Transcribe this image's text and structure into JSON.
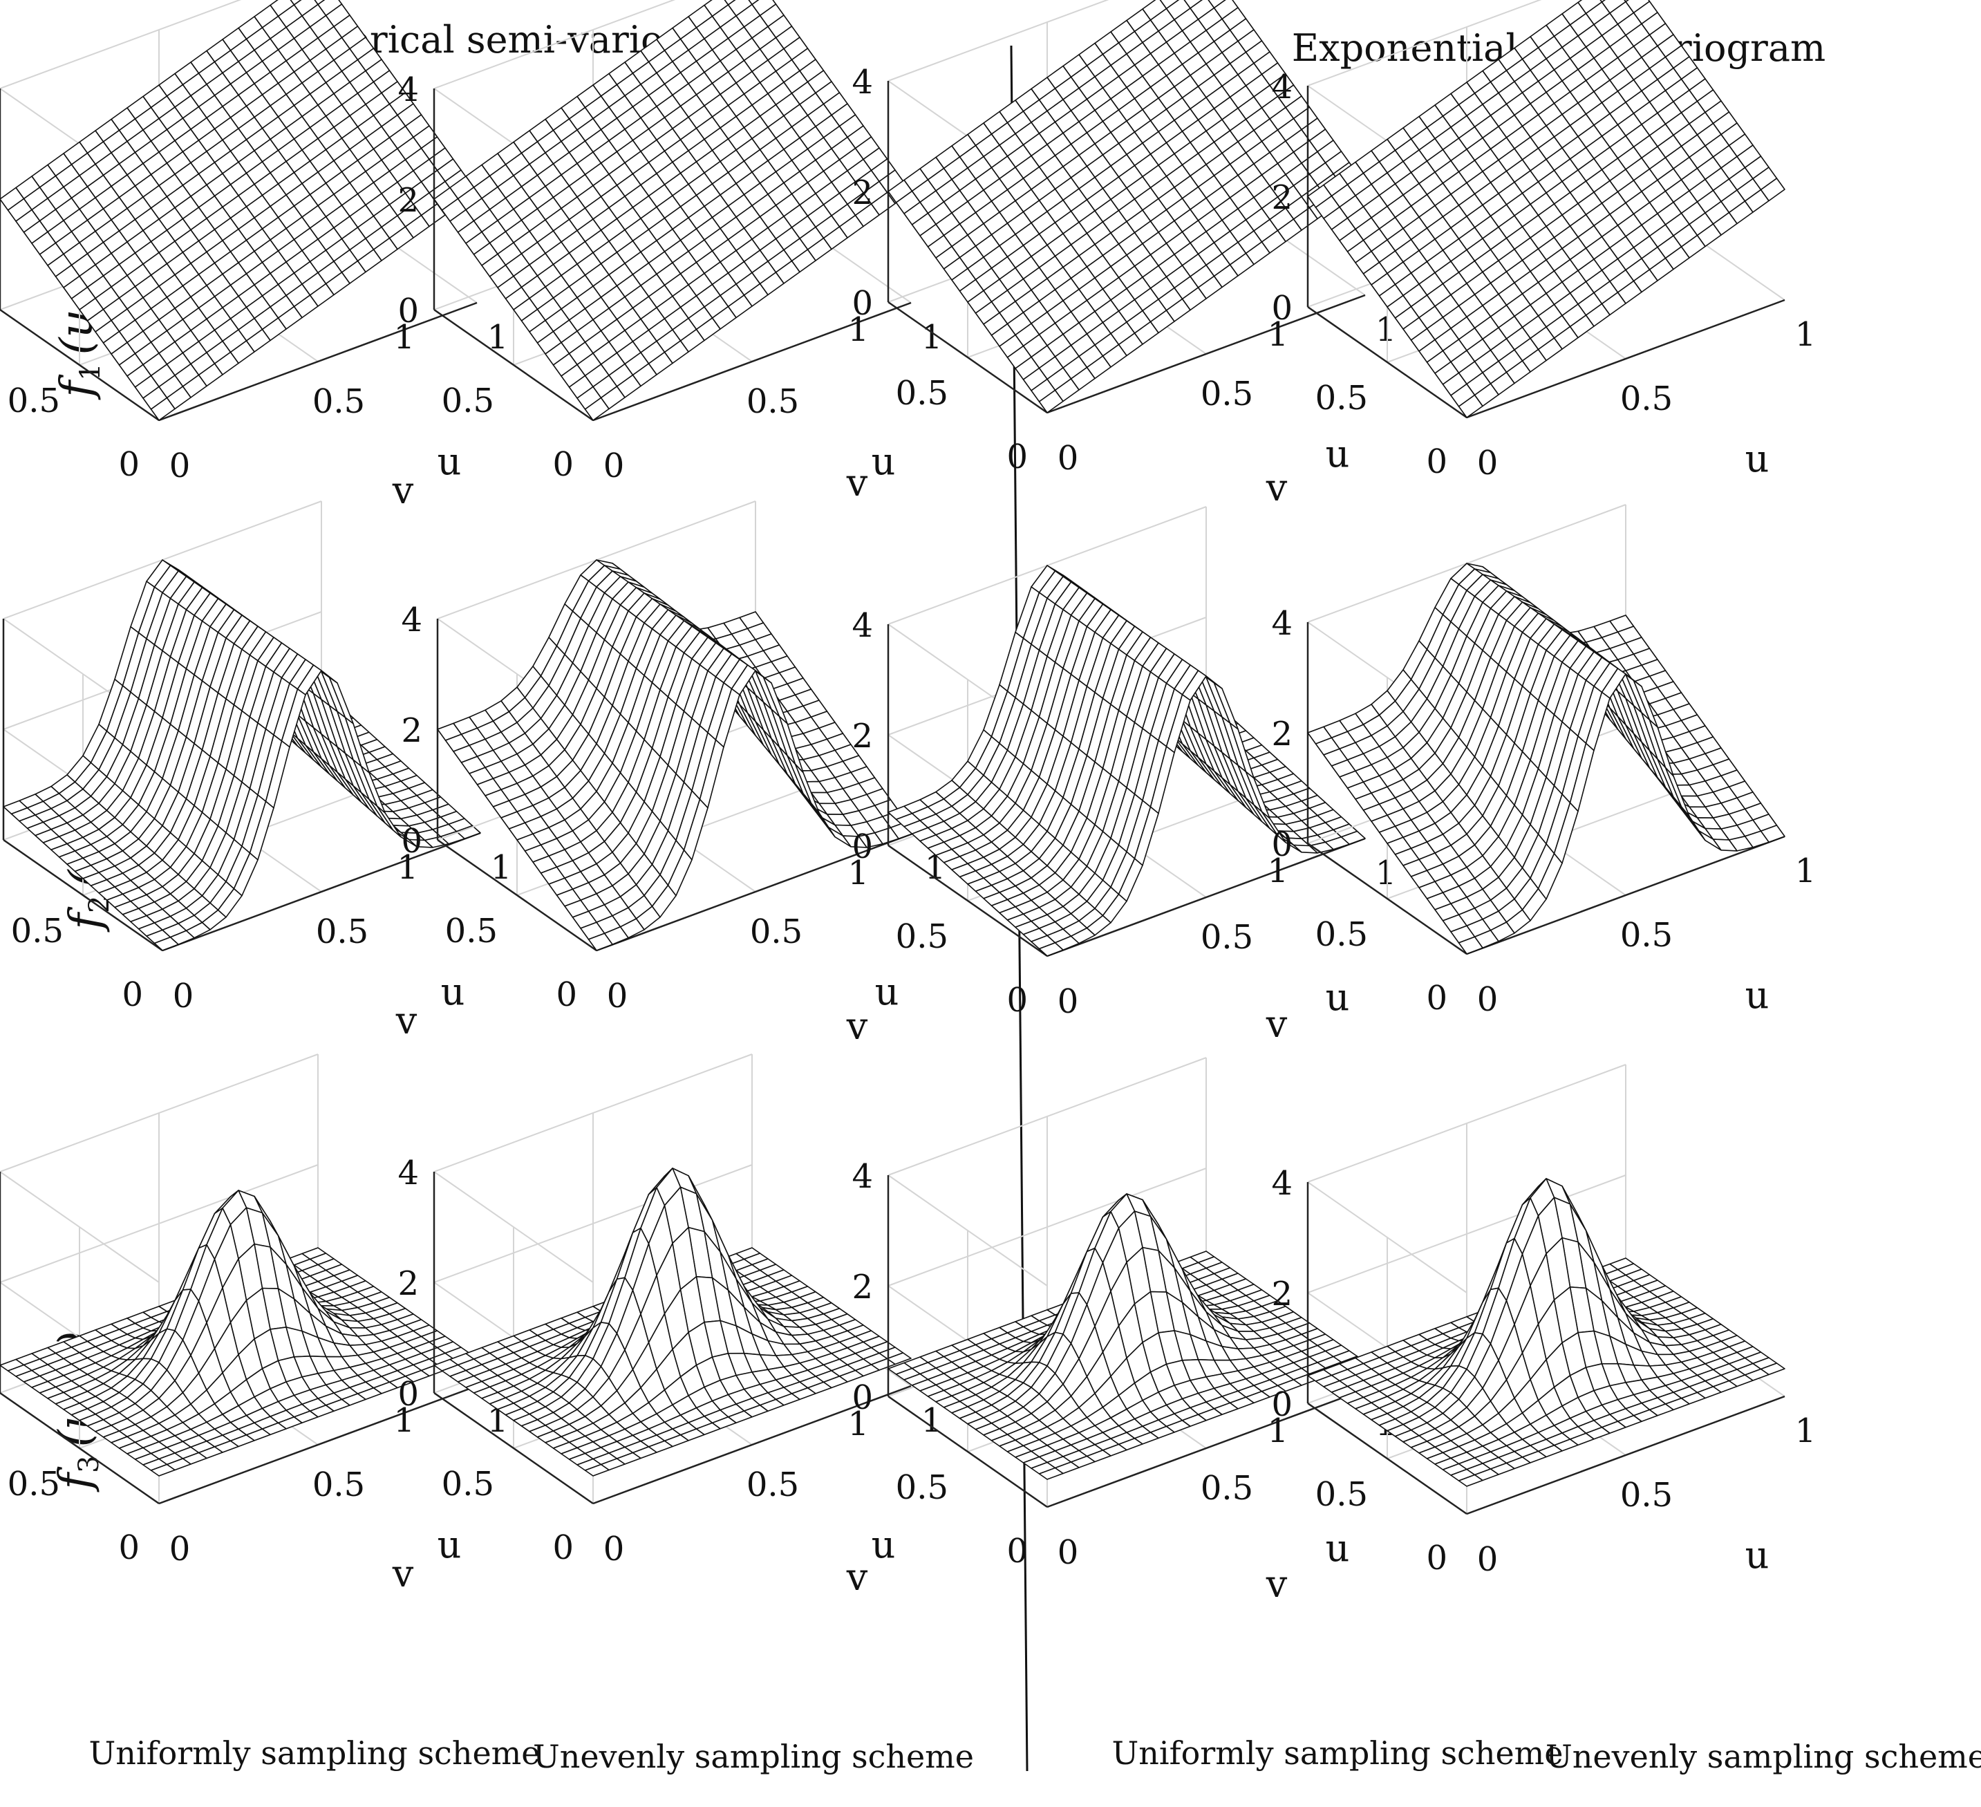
{
  "figure": {
    "column_titles": [
      "Spherical semi-variogram",
      "Exponential semi-variogram"
    ],
    "scheme_labels": [
      "Uniformly sampling scheme",
      "Unevenly sampling scheme",
      "Uniformly sampling scheme",
      "Unevenly sampling scheme"
    ],
    "row_zlabels": [
      {
        "pre": "f",
        "sub": "1",
        "post": "(u, v)"
      },
      {
        "pre": "f",
        "sub": "2",
        "post": "(u, v)"
      },
      {
        "pre": "f",
        "sub": "3",
        "post": "(u, v)"
      }
    ]
  },
  "chart_data": [
    {
      "type": "surface",
      "row": 0,
      "col": 0,
      "function": "plane",
      "variogram": "Spherical semi-variogram",
      "scheme": "Uniformly sampling scheme",
      "xlabel": "u",
      "ylabel": "v",
      "zlabel": "f1(u, v)",
      "xlim": [
        0,
        1
      ],
      "ylim": [
        0,
        1
      ],
      "zlim": [
        0,
        4
      ],
      "xticks": [
        "0",
        "0.5",
        "1"
      ],
      "yticks": [
        "0",
        "0.5",
        "1"
      ],
      "zticks": [
        "0",
        "2",
        "4"
      ],
      "grid": true,
      "mesh": "wireframe 20x20",
      "corner_values": {
        "u0v0": 0,
        "u1v0": 2,
        "u0v1": 2,
        "u1v1": 4
      }
    },
    {
      "type": "surface",
      "row": 0,
      "col": 1,
      "function": "plane",
      "variogram": "Spherical semi-variogram",
      "scheme": "Unevenly sampling scheme",
      "xlabel": "u",
      "ylabel": "v",
      "zlabel": "f1(u, v)",
      "xlim": [
        0,
        1
      ],
      "ylim": [
        0,
        1
      ],
      "zlim": [
        0,
        4
      ],
      "xticks": [
        "0",
        "0.5",
        "1"
      ],
      "yticks": [
        "0",
        "0.5",
        "1"
      ],
      "zticks": [
        "0",
        "2",
        "4"
      ],
      "grid": true,
      "mesh": "wireframe 20x20",
      "corner_values": {
        "u0v0": 0,
        "u1v0": 2,
        "u0v1": 2,
        "u1v1": 4
      }
    },
    {
      "type": "surface",
      "row": 0,
      "col": 2,
      "function": "plane",
      "variogram": "Exponential semi-variogram",
      "scheme": "Uniformly sampling scheme",
      "xlabel": "u",
      "ylabel": "v",
      "zlabel": "f1(u, v)",
      "xlim": [
        0,
        1
      ],
      "ylim": [
        0,
        1
      ],
      "zlim": [
        0,
        4
      ],
      "xticks": [
        "0",
        "0.5",
        "1"
      ],
      "yticks": [
        "0",
        "0.5",
        "1"
      ],
      "zticks": [
        "0",
        "2",
        "4"
      ],
      "grid": true,
      "mesh": "wireframe 20x20",
      "corner_values": {
        "u0v0": 0,
        "u1v0": 2,
        "u0v1": 2,
        "u1v1": 4
      }
    },
    {
      "type": "surface",
      "row": 0,
      "col": 3,
      "function": "plane",
      "variogram": "Exponential semi-variogram",
      "scheme": "Unevenly sampling scheme",
      "xlabel": "u",
      "ylabel": "v",
      "zlabel": "f1(u, v)",
      "xlim": [
        0,
        1
      ],
      "ylim": [
        0,
        1
      ],
      "zlim": [
        0,
        4
      ],
      "xticks": [
        "0",
        "0.5",
        "1"
      ],
      "yticks": [
        "0",
        "0.5",
        "1"
      ],
      "zticks": [
        "0",
        "2",
        "4"
      ],
      "grid": true,
      "mesh": "wireframe 20x20",
      "corner_values": {
        "u0v0": 0,
        "u1v0": 2,
        "u0v1": 2,
        "u1v1": 4
      }
    },
    {
      "type": "surface",
      "row": 1,
      "col": 0,
      "function": "ridge",
      "variogram": "Spherical semi-variogram",
      "scheme": "Uniformly sampling scheme",
      "xlabel": "u",
      "ylabel": "v",
      "zlabel": "f2(u, v)",
      "xlim": [
        0,
        1
      ],
      "ylim": [
        0,
        1
      ],
      "zlim": [
        0,
        4
      ],
      "xticks": [
        "0",
        "0.5",
        "1"
      ],
      "yticks": [
        "0",
        "0.5",
        "1"
      ],
      "zticks": [
        "0",
        "2",
        "4"
      ],
      "grid": true,
      "mesh": "wireframe 20x20",
      "peak_value": 4,
      "peak_along": "u = 0.5",
      "edge_value_v1": 0.6
    },
    {
      "type": "surface",
      "row": 1,
      "col": 1,
      "function": "ridge",
      "variogram": "Spherical semi-variogram",
      "scheme": "Unevenly sampling scheme",
      "xlabel": "u",
      "ylabel": "v",
      "zlabel": "f2(u, v)",
      "xlim": [
        0,
        1
      ],
      "ylim": [
        0,
        1
      ],
      "zlim": [
        0,
        4
      ],
      "xticks": [
        "0",
        "0.5",
        "1"
      ],
      "yticks": [
        "0",
        "0.5",
        "1"
      ],
      "zticks": [
        "0",
        "2",
        "4"
      ],
      "grid": true,
      "mesh": "wireframe 20x20",
      "peak_value": 4,
      "peak_along": "u = 0.5",
      "edge_value_v1": 2
    },
    {
      "type": "surface",
      "row": 1,
      "col": 2,
      "function": "ridge",
      "variogram": "Exponential semi-variogram",
      "scheme": "Uniformly sampling scheme",
      "xlabel": "u",
      "ylabel": "v",
      "zlabel": "f2(u, v)",
      "xlim": [
        0,
        1
      ],
      "ylim": [
        0,
        1
      ],
      "zlim": [
        0,
        4
      ],
      "xticks": [
        "0",
        "0.5",
        "1"
      ],
      "yticks": [
        "0",
        "0.5",
        "1"
      ],
      "zticks": [
        "0",
        "2",
        "4"
      ],
      "grid": true,
      "mesh": "wireframe 20x20",
      "peak_value": 4,
      "peak_along": "u = 0.5",
      "edge_value_v1": 0.6
    },
    {
      "type": "surface",
      "row": 1,
      "col": 3,
      "function": "ridge",
      "variogram": "Exponential semi-variogram",
      "scheme": "Unevenly sampling scheme",
      "xlabel": "u",
      "ylabel": "v",
      "zlabel": "f2(u, v)",
      "xlim": [
        0,
        1
      ],
      "ylim": [
        0,
        1
      ],
      "zlim": [
        0,
        4
      ],
      "xticks": [
        "0",
        "0.5",
        "1"
      ],
      "yticks": [
        "0",
        "0.5",
        "1"
      ],
      "zticks": [
        "0",
        "2",
        "4"
      ],
      "grid": true,
      "mesh": "wireframe 20x20",
      "peak_value": 4,
      "peak_along": "u = 0.5",
      "edge_value_v1": 2
    },
    {
      "type": "surface",
      "row": 2,
      "col": 0,
      "function": "peak",
      "variogram": "Spherical semi-variogram",
      "scheme": "Uniformly sampling scheme",
      "xlabel": "u",
      "ylabel": "v",
      "zlabel": "f3(u, v)",
      "xlim": [
        0,
        1
      ],
      "ylim": [
        0,
        1
      ],
      "zlim": [
        0,
        4
      ],
      "xticks": [
        "0",
        "0.5",
        "1"
      ],
      "yticks": [
        "0",
        "0.5",
        "1"
      ],
      "zticks": [
        "0",
        "2",
        "4"
      ],
      "grid": true,
      "mesh": "wireframe 20x20",
      "peak_value": 3.6,
      "peak_at": [
        0.5,
        0.5
      ],
      "base_value": 0.5
    },
    {
      "type": "surface",
      "row": 2,
      "col": 1,
      "function": "peak",
      "variogram": "Spherical semi-variogram",
      "scheme": "Unevenly sampling scheme",
      "xlabel": "u",
      "ylabel": "v",
      "zlabel": "f3(u, v)",
      "xlim": [
        0,
        1
      ],
      "ylim": [
        0,
        1
      ],
      "zlim": [
        0,
        4
      ],
      "xticks": [
        "0",
        "0.5",
        "1"
      ],
      "yticks": [
        "0",
        "0.5",
        "1"
      ],
      "zticks": [
        "0",
        "2",
        "4"
      ],
      "grid": true,
      "mesh": "wireframe 20x20",
      "peak_value": 4,
      "peak_at": [
        0.5,
        0.5
      ],
      "base_value": 0.5
    },
    {
      "type": "surface",
      "row": 2,
      "col": 2,
      "function": "peak",
      "variogram": "Exponential semi-variogram",
      "scheme": "Uniformly sampling scheme",
      "xlabel": "u",
      "ylabel": "v",
      "zlabel": "f3(u, v)",
      "xlim": [
        0,
        1
      ],
      "ylim": [
        0,
        1
      ],
      "zlim": [
        0,
        4
      ],
      "xticks": [
        "0",
        "0.5",
        "1"
      ],
      "yticks": [
        "0",
        "0.5",
        "1"
      ],
      "zticks": [
        "0",
        "2",
        "4"
      ],
      "grid": true,
      "mesh": "wireframe 20x20",
      "peak_value": 3.6,
      "peak_at": [
        0.5,
        0.5
      ],
      "base_value": 0.5
    },
    {
      "type": "surface",
      "row": 2,
      "col": 3,
      "function": "peak",
      "variogram": "Exponential semi-variogram",
      "scheme": "Unevenly sampling scheme",
      "xlabel": "u",
      "ylabel": "v",
      "zlabel": "f3(u, v)",
      "xlim": [
        0,
        1
      ],
      "ylim": [
        0,
        1
      ],
      "zlim": [
        0,
        4
      ],
      "xticks": [
        "0",
        "0.5",
        "1"
      ],
      "yticks": [
        "0",
        "0.5",
        "1"
      ],
      "zticks": [
        "0",
        "2",
        "4"
      ],
      "grid": true,
      "mesh": "wireframe 20x20",
      "peak_value": 4,
      "peak_at": [
        0.5,
        0.5
      ],
      "base_value": 0.5
    }
  ]
}
